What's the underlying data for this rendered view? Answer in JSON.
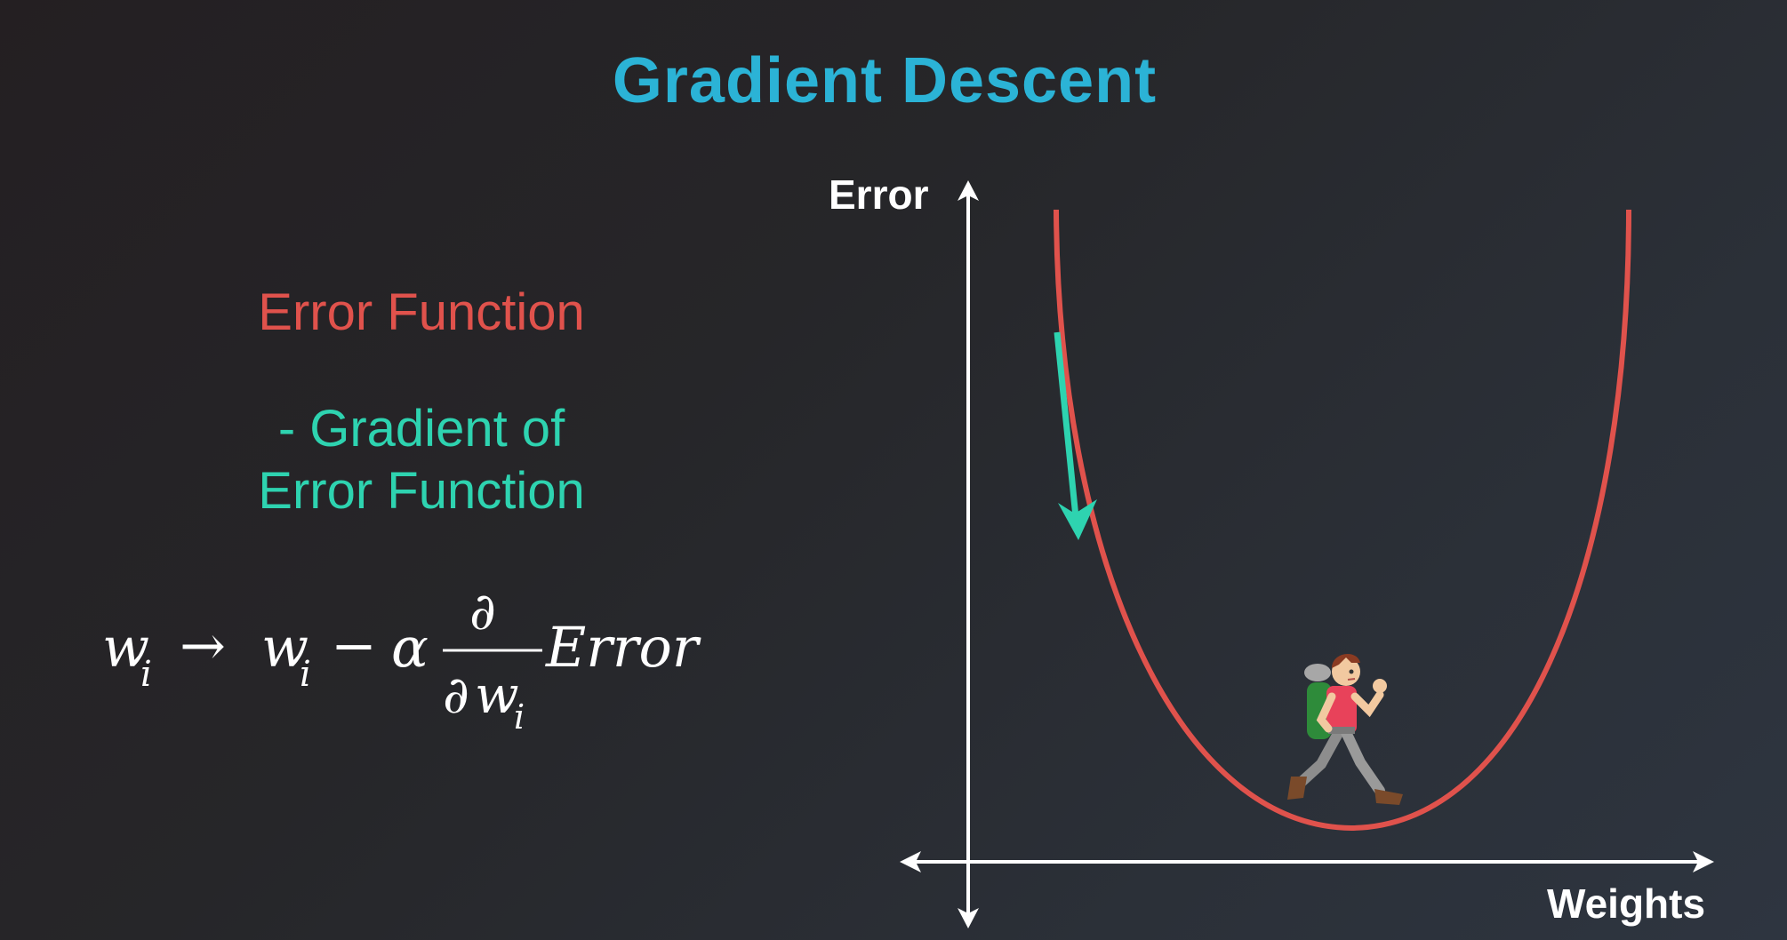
{
  "slide": {
    "title": "Gradient Descent",
    "title_color": "#2bb3d6"
  },
  "left_panel": {
    "error_function_label": "Error Function",
    "error_function_color": "#e0524c",
    "neg_gradient_line1": "- Gradient of",
    "neg_gradient_line2": "Error Function",
    "neg_gradient_color": "#2ed3b0",
    "formula": {
      "w": "w",
      "i": "i",
      "arrow": "→",
      "minus": "−",
      "alpha": "α",
      "partial": "∂",
      "error": "Error"
    }
  },
  "graph": {
    "y_axis_label": "Error",
    "x_axis_label": "Weights",
    "axis_color": "#ffffff",
    "curve_color": "#e0524c",
    "gradient_arrow_color": "#2ed3b0",
    "curve_shape": "u-shaped",
    "hiker_icon": "hiker-icon"
  }
}
